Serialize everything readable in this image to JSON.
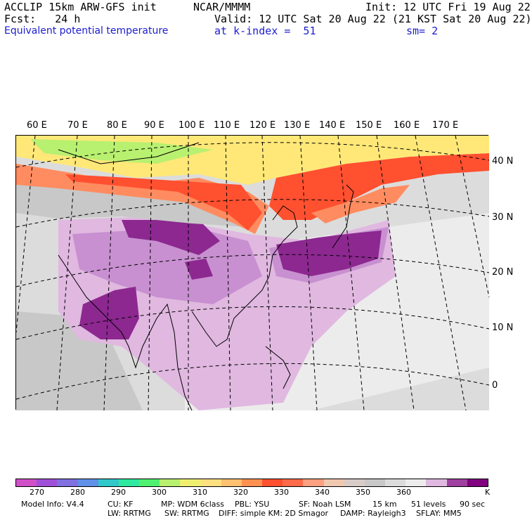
{
  "header": {
    "model_line": "ACCLIP 15km ARW-GFS init",
    "center_title": "NCAR/MMMM",
    "init_line": "Init: 12 UTC Fri 19 Aug 22",
    "fcst_line": "Fcst:   24 h",
    "valid_line": "Valid: 12 UTC Sat 20 Aug 22 (21 KST Sat 20 Aug 22)",
    "field_name": "Equivalent potential temperature",
    "level_line": "at k-index =  51",
    "smoothing": "sm= 2"
  },
  "map": {
    "lon_labels": [
      "60 E",
      "70 E",
      "80 E",
      "90 E",
      "100 E",
      "110 E",
      "120 E",
      "130 E",
      "140 E",
      "150 E",
      "160 E",
      "170 E"
    ],
    "lat_labels": [
      "40 N",
      "30 N",
      "20 N",
      "10 N",
      "0"
    ],
    "colors": {
      "background_gray": "#dcdcdc",
      "light_gray": "#ececec",
      "mid_gray": "#c8c8c8",
      "light_purple": "#e0b8e0",
      "mid_purple": "#c890d0",
      "dark_purple": "#8c2890",
      "orange_red": "#ff5030",
      "salmon": "#ff8c60",
      "yellow": "#ffe878",
      "green": "#b8f070"
    }
  },
  "colorbar": {
    "colors": [
      "#d050c8",
      "#a050d8",
      "#8070e0",
      "#6090e8",
      "#30c8c8",
      "#30e8a0",
      "#50f070",
      "#b8f070",
      "#f0f070",
      "#ffe080",
      "#ffc070",
      "#ff9050",
      "#ff5030",
      "#ff6a48",
      "#ffa080",
      "#f0c8b0",
      "#d8ccc8",
      "#c8c8c8",
      "#dcdcdc",
      "#ececec",
      "#e0b8e0",
      "#a040a0",
      "#800080"
    ],
    "labels": [
      "270",
      "280",
      "290",
      "300",
      "310",
      "320",
      "330",
      "340",
      "350",
      "360"
    ],
    "unit": "K"
  },
  "footer": {
    "model_info": "Model Info: V4.4",
    "cu": "CU: KF",
    "mp": "MP: WDM 6class",
    "pbl": "PBL: YSU",
    "sf": "SF: Noah LSM",
    "res": "15 km",
    "levels": "51 levels",
    "dt": "90 sec",
    "lw": "LW: RRTMG",
    "sw": "SW: RRTMG",
    "diff": "DIFF: simple KM: 2D Smagor",
    "damp": "DAMP: Rayleigh3",
    "sflay": "SFLAY: MM5"
  }
}
